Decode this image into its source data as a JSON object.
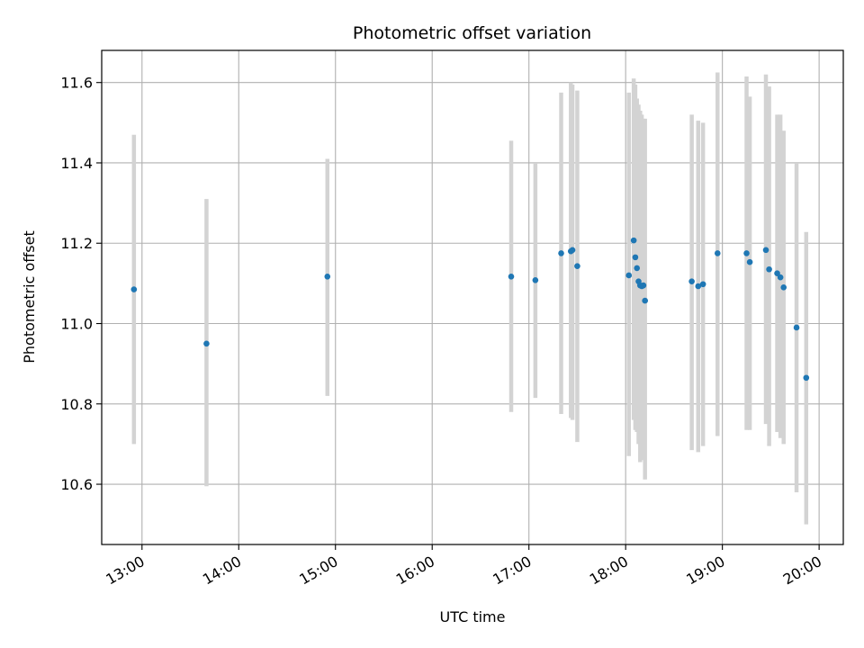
{
  "chart_data": {
    "type": "scatter",
    "title": "Photometric offset variation",
    "xlabel": "UTC time",
    "ylabel": "Photometric offset",
    "x_axis_type": "time",
    "xlim": [
      "12:35",
      "20:15"
    ],
    "ylim": [
      10.45,
      11.68
    ],
    "x_ticks": [
      "13:00",
      "14:00",
      "15:00",
      "16:00",
      "17:00",
      "18:00",
      "19:00",
      "20:00"
    ],
    "y_ticks": [
      10.6,
      10.8,
      11.0,
      11.2,
      11.4,
      11.6
    ],
    "y_tick_labels": [
      "10.6",
      "10.8",
      "11.0",
      "11.2",
      "11.4",
      "11.6"
    ],
    "grid": true,
    "legend": "none",
    "marker_color": "#1f77b4",
    "errorbar_color": "#d3d3d3",
    "points": [
      {
        "time": "12:55",
        "y": 11.085,
        "err_low": 10.7,
        "err_high": 11.47
      },
      {
        "time": "13:40",
        "y": 10.95,
        "err_low": 10.595,
        "err_high": 11.31
      },
      {
        "time": "14:55",
        "y": 11.117,
        "err_low": 10.82,
        "err_high": 11.41
      },
      {
        "time": "16:49",
        "y": 11.117,
        "err_low": 10.78,
        "err_high": 11.455
      },
      {
        "time": "17:04",
        "y": 11.108,
        "err_low": 10.815,
        "err_high": 11.4
      },
      {
        "time": "17:20",
        "y": 11.175,
        "err_low": 10.775,
        "err_high": 11.575
      },
      {
        "time": "17:26",
        "y": 11.18,
        "err_low": 10.765,
        "err_high": 11.6
      },
      {
        "time": "17:27",
        "y": 11.183,
        "err_low": 10.76,
        "err_high": 11.595
      },
      {
        "time": "17:30",
        "y": 11.143,
        "err_low": 10.705,
        "err_high": 11.58
      },
      {
        "time": "18:02",
        "y": 11.12,
        "err_low": 10.67,
        "err_high": 11.575
      },
      {
        "time": "18:05",
        "y": 11.207,
        "err_low": 10.76,
        "err_high": 11.61
      },
      {
        "time": "18:06",
        "y": 11.165,
        "err_low": 10.735,
        "err_high": 11.595
      },
      {
        "time": "18:07",
        "y": 11.138,
        "err_low": 10.73,
        "err_high": 11.56
      },
      {
        "time": "18:08",
        "y": 11.105,
        "err_low": 10.7,
        "err_high": 11.545
      },
      {
        "time": "18:09",
        "y": 11.095,
        "err_low": 10.655,
        "err_high": 11.53
      },
      {
        "time": "18:10",
        "y": 11.093,
        "err_low": 10.67,
        "err_high": 11.52
      },
      {
        "time": "18:11",
        "y": 11.095,
        "err_low": 10.66,
        "err_high": 11.51
      },
      {
        "time": "18:12",
        "y": 11.057,
        "err_low": 10.612,
        "err_high": 11.51
      },
      {
        "time": "18:41",
        "y": 11.105,
        "err_low": 10.685,
        "err_high": 11.52
      },
      {
        "time": "18:45",
        "y": 11.093,
        "err_low": 10.68,
        "err_high": 11.505
      },
      {
        "time": "18:48",
        "y": 11.098,
        "err_low": 10.695,
        "err_high": 11.5
      },
      {
        "time": "18:57",
        "y": 11.175,
        "err_low": 10.72,
        "err_high": 11.625
      },
      {
        "time": "19:15",
        "y": 11.175,
        "err_low": 10.735,
        "err_high": 11.615
      },
      {
        "time": "19:17",
        "y": 11.153,
        "err_low": 10.735,
        "err_high": 11.565
      },
      {
        "time": "19:27",
        "y": 11.183,
        "err_low": 10.75,
        "err_high": 11.62
      },
      {
        "time": "19:29",
        "y": 11.135,
        "err_low": 10.695,
        "err_high": 11.59
      },
      {
        "time": "19:34",
        "y": 11.125,
        "err_low": 10.73,
        "err_high": 11.52
      },
      {
        "time": "19:36",
        "y": 11.115,
        "err_low": 10.715,
        "err_high": 11.52
      },
      {
        "time": "19:38",
        "y": 11.09,
        "err_low": 10.7,
        "err_high": 11.48
      },
      {
        "time": "19:46",
        "y": 10.99,
        "err_low": 10.58,
        "err_high": 11.4
      },
      {
        "time": "19:52",
        "y": 10.865,
        "err_low": 10.5,
        "err_high": 11.228
      }
    ]
  }
}
